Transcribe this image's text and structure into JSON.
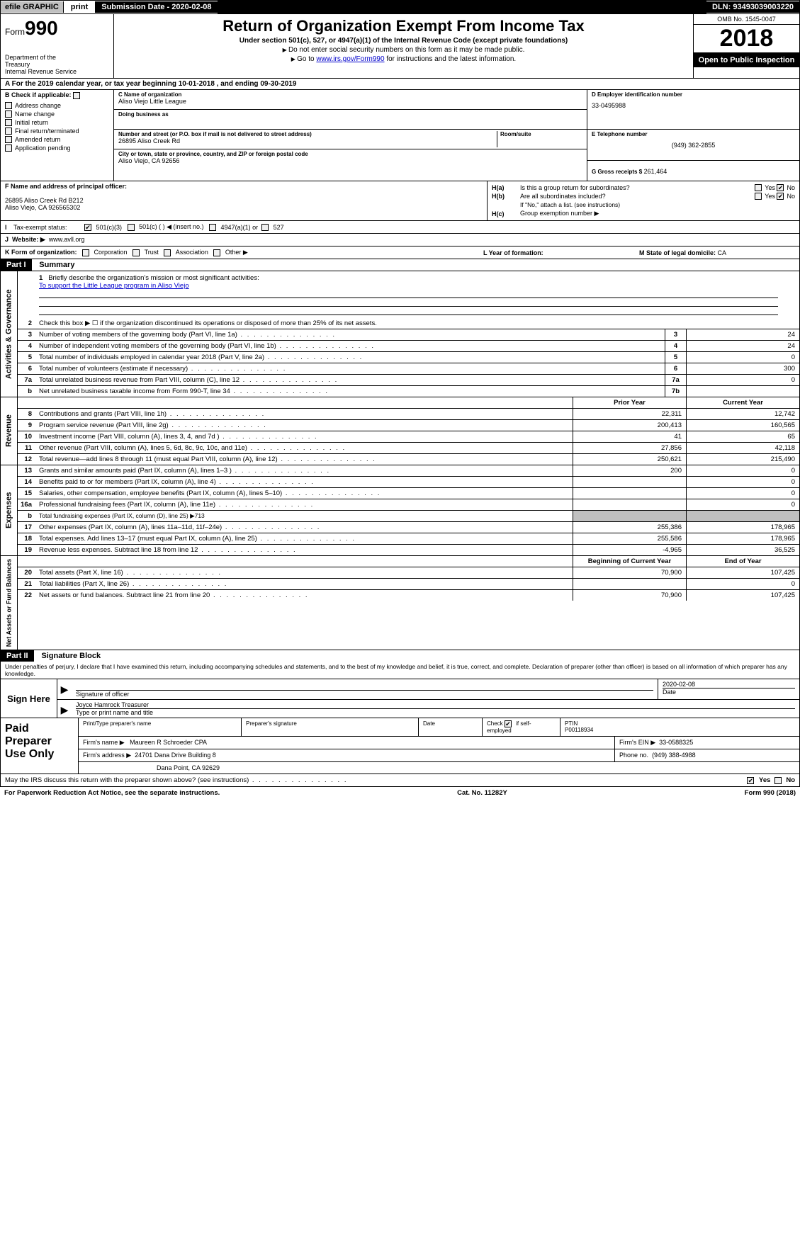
{
  "topbar": {
    "efile": "efile GRAPHIC",
    "print": "print",
    "submission": "Submission Date - 2020-02-08",
    "dln": "DLN: 93493039003220"
  },
  "header": {
    "form_prefix": "Form",
    "form_num": "990",
    "dept1": "Department of the",
    "dept2": "Treasury",
    "dept3": "Internal Revenue Service",
    "title": "Return of Organization Exempt From Income Tax",
    "sub": "Under section 501(c), 527, or 4947(a)(1) of the Internal Revenue Code (except private foundations)",
    "note1": "Do not enter social security numbers on this form as it may be made public.",
    "note2_pre": "Go to ",
    "note2_link": "www.irs.gov/Form990",
    "note2_post": " for instructions and the latest information.",
    "omb": "OMB No. 1545-0047",
    "year": "2018",
    "open": "Open to Public Inspection"
  },
  "rowA": "A   For the 2019 calendar year, or tax year beginning 10-01-2018       , and ending 09-30-2019",
  "colB": {
    "header": "B Check if applicable:",
    "items": [
      "Address change",
      "Name change",
      "Initial return",
      "Final return/terminated",
      "Amended return",
      "Application pending"
    ]
  },
  "colC": {
    "name_label": "C Name of organization",
    "name": "Aliso Viejo Little League",
    "dba_label": "Doing business as",
    "dba": "",
    "addr_label": "Number and street (or P.O. box if mail is not delivered to street address)",
    "addr": "26895 Aliso Creek Rd",
    "room_label": "Room/suite",
    "city_label": "City or town, state or province, country, and ZIP or foreign postal code",
    "city": "Aliso Viejo, CA  92656"
  },
  "colDE": {
    "d_label": "D Employer identification number",
    "d": "33-0495988",
    "e_label": "E Telephone number",
    "e": "(949) 362-2855",
    "g_label": "G Gross receipts $",
    "g": "261,464"
  },
  "rowF": {
    "label": "F Name and address of principal officer:",
    "line1": "26895 Aliso Creek Rd B212",
    "line2": "Aliso Viejo, CA  926565302"
  },
  "rowH": {
    "ha_label": "H(a)",
    "ha_text": "Is this a group return for subordinates?",
    "hb_label": "H(b)",
    "hb_text": "Are all subordinates included?",
    "hb_note": "If \"No,\" attach a list. (see instructions)",
    "hc_label": "H(c)",
    "hc_text": "Group exemption number ▶",
    "yes": "Yes",
    "no": "No"
  },
  "rowI": {
    "label": "Tax-exempt status:",
    "opt1": "501(c)(3)",
    "opt2": "501(c) (   ) ◀ (insert no.)",
    "opt3": "4947(a)(1) or",
    "opt4": "527"
  },
  "rowJ": {
    "label": "Website: ▶",
    "val": "www.avll.org"
  },
  "rowK": {
    "label": "K Form of organization:",
    "opts": [
      "Corporation",
      "Trust",
      "Association",
      "Other ▶"
    ],
    "l_label": "L Year of formation:",
    "m_label": "M State of legal domicile:",
    "m_val": "CA"
  },
  "part1": {
    "header": "Part I",
    "title": "Summary"
  },
  "sidelabels": {
    "gov": "Activities & Governance",
    "rev": "Revenue",
    "exp": "Expenses",
    "net": "Net Assets or Fund Balances"
  },
  "mission": {
    "num": "1",
    "label": "Briefly describe the organization's mission or most significant activities:",
    "text": "To support the Little League program in Aliso Viejo"
  },
  "gov_lines": [
    {
      "n": "2",
      "t": "Check this box ▶ ☐  if the organization discontinued its operations or disposed of more than 25% of its net assets."
    },
    {
      "n": "3",
      "t": "Number of voting members of the governing body (Part VI, line 1a)",
      "box": "3",
      "v": "24"
    },
    {
      "n": "4",
      "t": "Number of independent voting members of the governing body (Part VI, line 1b)",
      "box": "4",
      "v": "24"
    },
    {
      "n": "5",
      "t": "Total number of individuals employed in calendar year 2018 (Part V, line 2a)",
      "box": "5",
      "v": "0"
    },
    {
      "n": "6",
      "t": "Total number of volunteers (estimate if necessary)",
      "box": "6",
      "v": "300"
    },
    {
      "n": "7a",
      "t": "Total unrelated business revenue from Part VIII, column (C), line 12",
      "box": "7a",
      "v": "0"
    },
    {
      "n": "b",
      "t": "Net unrelated business taxable income from Form 990-T, line 34",
      "box": "7b",
      "v": ""
    }
  ],
  "two_col_header": {
    "prior": "Prior Year",
    "current": "Current Year"
  },
  "rev_lines": [
    {
      "n": "8",
      "t": "Contributions and grants (Part VIII, line 1h)",
      "p": "22,311",
      "c": "12,742"
    },
    {
      "n": "9",
      "t": "Program service revenue (Part VIII, line 2g)",
      "p": "200,413",
      "c": "160,565"
    },
    {
      "n": "10",
      "t": "Investment income (Part VIII, column (A), lines 3, 4, and 7d )",
      "p": "41",
      "c": "65"
    },
    {
      "n": "11",
      "t": "Other revenue (Part VIII, column (A), lines 5, 6d, 8c, 9c, 10c, and 11e)",
      "p": "27,856",
      "c": "42,118"
    },
    {
      "n": "12",
      "t": "Total revenue—add lines 8 through 11 (must equal Part VIII, column (A), line 12)",
      "p": "250,621",
      "c": "215,490"
    }
  ],
  "exp_lines": [
    {
      "n": "13",
      "t": "Grants and similar amounts paid (Part IX, column (A), lines 1–3 )",
      "p": "200",
      "c": "0"
    },
    {
      "n": "14",
      "t": "Benefits paid to or for members (Part IX, column (A), line 4)",
      "p": "",
      "c": "0"
    },
    {
      "n": "15",
      "t": "Salaries, other compensation, employee benefits (Part IX, column (A), lines 5–10)",
      "p": "",
      "c": "0"
    },
    {
      "n": "16a",
      "t": "Professional fundraising fees (Part IX, column (A), line 11e)",
      "p": "",
      "c": "0"
    },
    {
      "n": "b",
      "t": "Total fundraising expenses (Part IX, column (D), line 25) ▶713",
      "shade": true
    },
    {
      "n": "17",
      "t": "Other expenses (Part IX, column (A), lines 11a–11d, 11f–24e)",
      "p": "255,386",
      "c": "178,965"
    },
    {
      "n": "18",
      "t": "Total expenses. Add lines 13–17 (must equal Part IX, column (A), line 25)",
      "p": "255,586",
      "c": "178,965"
    },
    {
      "n": "19",
      "t": "Revenue less expenses. Subtract line 18 from line 12",
      "p": "-4,965",
      "c": "36,525"
    }
  ],
  "net_header": {
    "prior": "Beginning of Current Year",
    "current": "End of Year"
  },
  "net_lines": [
    {
      "n": "20",
      "t": "Total assets (Part X, line 16)",
      "p": "70,900",
      "c": "107,425"
    },
    {
      "n": "21",
      "t": "Total liabilities (Part X, line 26)",
      "p": "",
      "c": "0"
    },
    {
      "n": "22",
      "t": "Net assets or fund balances. Subtract line 21 from line 20",
      "p": "70,900",
      "c": "107,425"
    }
  ],
  "part2": {
    "header": "Part II",
    "title": "Signature Block"
  },
  "sig": {
    "note": "Under penalties of perjury, I declare that I have examined this return, including accompanying schedules and statements, and to the best of my knowledge and belief, it is true, correct, and complete. Declaration of preparer (other than officer) is based on all information of which preparer has any knowledge.",
    "here": "Sign Here",
    "sig_label": "Signature of officer",
    "date": "2020-02-08",
    "date_label": "Date",
    "name": "Joyce Hamrock Treasurer",
    "name_label": "Type or print name and title"
  },
  "paid": {
    "title": "Paid Preparer Use Only",
    "h1": "Print/Type preparer's name",
    "h2": "Preparer's signature",
    "h3": "Date",
    "h4_pre": "Check",
    "h4_post": "if self-employed",
    "h5": "PTIN",
    "ptin": "P00118934",
    "firm_name_label": "Firm's name    ▶",
    "firm_name": "Maureen R Schroeder CPA",
    "firm_ein_label": "Firm's EIN ▶",
    "firm_ein": "33-0588325",
    "firm_addr_label": "Firm's address ▶",
    "firm_addr1": "24701 Dana Drive Building 8",
    "firm_addr2": "Dana Point, CA  92629",
    "phone_label": "Phone no.",
    "phone": "(949) 388-4988"
  },
  "footer": {
    "discuss": "May the IRS discuss this return with the preparer shown above? (see instructions)",
    "yes": "Yes",
    "no": "No",
    "pra": "For Paperwork Reduction Act Notice, see the separate instructions.",
    "cat": "Cat. No. 11282Y",
    "form": "Form 990 (2018)"
  }
}
